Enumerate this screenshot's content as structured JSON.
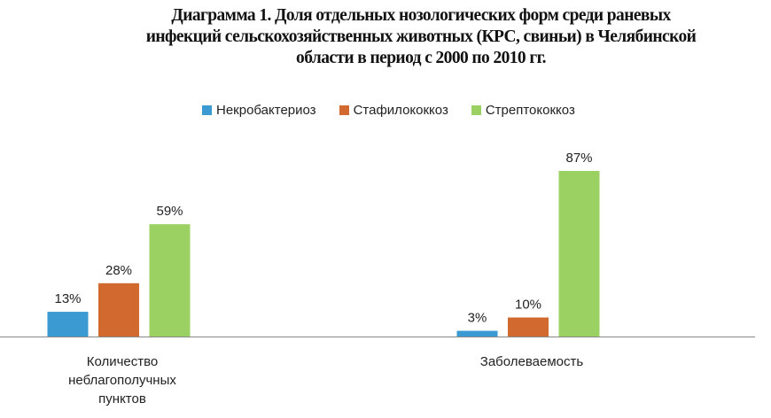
{
  "chart_data": {
    "type": "bar",
    "title_lines": [
      "Диаграмма 1. Доля отдельных нозологических форм среди раневых",
      "инфекций сельскохозяйственных животных (КРС, свиньи) в Челябинской",
      "области  в период с 2000 по 2010 гг."
    ],
    "categories": [
      [
        "Количество",
        "неблагополучных",
        "пунктов"
      ],
      [
        "Заболеваемость"
      ]
    ],
    "series": [
      {
        "name": "Некробактериоз",
        "color": "#3a9ad1",
        "values": [
          13,
          3
        ],
        "labels": [
          "13%",
          "3%"
        ]
      },
      {
        "name": "Стафилококкоз",
        "color": "#d2692f",
        "values": [
          28,
          10
        ],
        "labels": [
          "28%",
          "10%"
        ]
      },
      {
        "name": "Стрептококкоз",
        "color": "#9bd062",
        "values": [
          59,
          87
        ],
        "labels": [
          "59%",
          "87%"
        ]
      }
    ],
    "ylim": [
      0,
      100
    ],
    "legend_position": "top",
    "grid": false
  }
}
